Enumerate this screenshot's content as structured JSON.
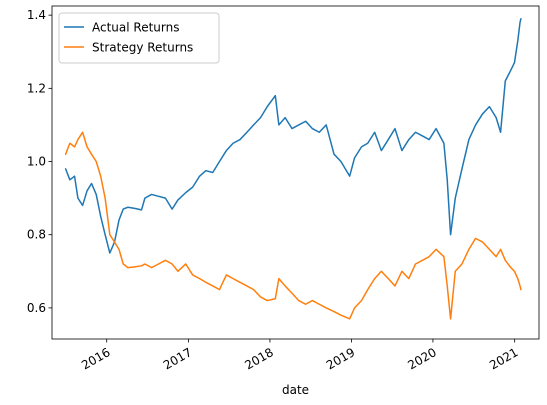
{
  "chart_data": {
    "type": "line",
    "xlabel": "date",
    "ylabel": "",
    "xlim": [
      "2015-05-01",
      "2021-04-20"
    ],
    "ylim": [
      0.515,
      1.425
    ],
    "x_ticks": [
      {
        "date": "2016-01-01",
        "label": "2016"
      },
      {
        "date": "2017-01-01",
        "label": "2017"
      },
      {
        "date": "2018-01-01",
        "label": "2018"
      },
      {
        "date": "2019-01-01",
        "label": "2019"
      },
      {
        "date": "2020-01-01",
        "label": "2020"
      },
      {
        "date": "2021-01-01",
        "label": "2021"
      }
    ],
    "y_ticks": [
      {
        "value": 0.6,
        "label": "0.6"
      },
      {
        "value": 0.8,
        "label": "0.8"
      },
      {
        "value": 1.0,
        "label": "1.0"
      },
      {
        "value": 1.2,
        "label": "1.2"
      },
      {
        "value": 1.4,
        "label": "1.4"
      }
    ],
    "grid": false,
    "legend_position": "top-left",
    "series": [
      {
        "name": "Actual Returns",
        "color": "#1f77b4",
        "points": [
          [
            "2015-07-01",
            0.98
          ],
          [
            "2015-07-20",
            0.95
          ],
          [
            "2015-08-10",
            0.96
          ],
          [
            "2015-08-25",
            0.9
          ],
          [
            "2015-09-15",
            0.88
          ],
          [
            "2015-10-05",
            0.92
          ],
          [
            "2015-10-25",
            0.94
          ],
          [
            "2015-11-15",
            0.91
          ],
          [
            "2015-12-05",
            0.85
          ],
          [
            "2015-12-25",
            0.8
          ],
          [
            "2016-01-15",
            0.75
          ],
          [
            "2016-02-05",
            0.78
          ],
          [
            "2016-02-25",
            0.84
          ],
          [
            "2016-03-15",
            0.87
          ],
          [
            "2016-04-05",
            0.875
          ],
          [
            "2016-05-05",
            0.872
          ],
          [
            "2016-06-05",
            0.868
          ],
          [
            "2016-06-20",
            0.9
          ],
          [
            "2016-07-20",
            0.91
          ],
          [
            "2016-08-20",
            0.905
          ],
          [
            "2016-09-20",
            0.9
          ],
          [
            "2016-10-20",
            0.87
          ],
          [
            "2016-11-15",
            0.895
          ],
          [
            "2016-12-20",
            0.915
          ],
          [
            "2017-01-20",
            0.93
          ],
          [
            "2017-02-20",
            0.96
          ],
          [
            "2017-03-20",
            0.975
          ],
          [
            "2017-04-20",
            0.97
          ],
          [
            "2017-05-20",
            1.0
          ],
          [
            "2017-06-20",
            1.03
          ],
          [
            "2017-07-20",
            1.05
          ],
          [
            "2017-08-20",
            1.06
          ],
          [
            "2017-09-20",
            1.08
          ],
          [
            "2017-10-20",
            1.1
          ],
          [
            "2017-11-20",
            1.12
          ],
          [
            "2017-12-20",
            1.15
          ],
          [
            "2018-01-25",
            1.18
          ],
          [
            "2018-02-10",
            1.1
          ],
          [
            "2018-03-10",
            1.12
          ],
          [
            "2018-04-10",
            1.09
          ],
          [
            "2018-05-10",
            1.1
          ],
          [
            "2018-06-10",
            1.11
          ],
          [
            "2018-07-10",
            1.09
          ],
          [
            "2018-08-10",
            1.08
          ],
          [
            "2018-09-10",
            1.1
          ],
          [
            "2018-10-15",
            1.02
          ],
          [
            "2018-11-15",
            1.0
          ],
          [
            "2018-12-24",
            0.96
          ],
          [
            "2019-01-15",
            1.01
          ],
          [
            "2019-02-15",
            1.04
          ],
          [
            "2019-03-15",
            1.05
          ],
          [
            "2019-04-15",
            1.08
          ],
          [
            "2019-05-15",
            1.03
          ],
          [
            "2019-06-15",
            1.06
          ],
          [
            "2019-07-15",
            1.09
          ],
          [
            "2019-08-15",
            1.03
          ],
          [
            "2019-09-15",
            1.06
          ],
          [
            "2019-10-15",
            1.08
          ],
          [
            "2019-11-15",
            1.07
          ],
          [
            "2019-12-15",
            1.06
          ],
          [
            "2020-01-15",
            1.09
          ],
          [
            "2020-02-19",
            1.05
          ],
          [
            "2020-03-05",
            0.95
          ],
          [
            "2020-03-20",
            0.8
          ],
          [
            "2020-04-10",
            0.9
          ],
          [
            "2020-05-10",
            0.98
          ],
          [
            "2020-06-10",
            1.06
          ],
          [
            "2020-07-10",
            1.1
          ],
          [
            "2020-08-10",
            1.13
          ],
          [
            "2020-09-10",
            1.15
          ],
          [
            "2020-10-10",
            1.12
          ],
          [
            "2020-10-30",
            1.08
          ],
          [
            "2020-11-20",
            1.22
          ],
          [
            "2020-12-15",
            1.25
          ],
          [
            "2020-12-31",
            1.27
          ],
          [
            "2021-01-15",
            1.33
          ],
          [
            "2021-01-25",
            1.38
          ],
          [
            "2021-01-29",
            1.39
          ]
        ]
      },
      {
        "name": "Strategy Returns",
        "color": "#ff7f0e",
        "points": [
          [
            "2015-07-01",
            1.02
          ],
          [
            "2015-07-20",
            1.05
          ],
          [
            "2015-08-10",
            1.04
          ],
          [
            "2015-08-25",
            1.06
          ],
          [
            "2015-09-15",
            1.08
          ],
          [
            "2015-10-05",
            1.04
          ],
          [
            "2015-10-25",
            1.02
          ],
          [
            "2015-11-15",
            1.0
          ],
          [
            "2015-12-05",
            0.96
          ],
          [
            "2015-12-25",
            0.9
          ],
          [
            "2016-01-15",
            0.8
          ],
          [
            "2016-02-05",
            0.78
          ],
          [
            "2016-02-25",
            0.76
          ],
          [
            "2016-03-15",
            0.72
          ],
          [
            "2016-04-05",
            0.71
          ],
          [
            "2016-05-05",
            0.712
          ],
          [
            "2016-06-05",
            0.715
          ],
          [
            "2016-06-20",
            0.72
          ],
          [
            "2016-07-20",
            0.71
          ],
          [
            "2016-08-20",
            0.72
          ],
          [
            "2016-09-20",
            0.73
          ],
          [
            "2016-10-20",
            0.72
          ],
          [
            "2016-11-15",
            0.7
          ],
          [
            "2016-12-20",
            0.72
          ],
          [
            "2017-01-20",
            0.69
          ],
          [
            "2017-02-20",
            0.68
          ],
          [
            "2017-03-20",
            0.67
          ],
          [
            "2017-04-20",
            0.66
          ],
          [
            "2017-05-20",
            0.65
          ],
          [
            "2017-06-20",
            0.69
          ],
          [
            "2017-07-20",
            0.68
          ],
          [
            "2017-08-20",
            0.67
          ],
          [
            "2017-09-20",
            0.66
          ],
          [
            "2017-10-20",
            0.65
          ],
          [
            "2017-11-20",
            0.63
          ],
          [
            "2017-12-20",
            0.62
          ],
          [
            "2018-01-25",
            0.625
          ],
          [
            "2018-02-10",
            0.68
          ],
          [
            "2018-03-10",
            0.66
          ],
          [
            "2018-04-10",
            0.64
          ],
          [
            "2018-05-10",
            0.62
          ],
          [
            "2018-06-10",
            0.61
          ],
          [
            "2018-07-10",
            0.62
          ],
          [
            "2018-08-10",
            0.61
          ],
          [
            "2018-09-10",
            0.6
          ],
          [
            "2018-10-15",
            0.59
          ],
          [
            "2018-11-15",
            0.58
          ],
          [
            "2018-12-24",
            0.57
          ],
          [
            "2019-01-15",
            0.6
          ],
          [
            "2019-02-15",
            0.62
          ],
          [
            "2019-03-15",
            0.65
          ],
          [
            "2019-04-15",
            0.68
          ],
          [
            "2019-05-15",
            0.7
          ],
          [
            "2019-06-15",
            0.68
          ],
          [
            "2019-07-15",
            0.66
          ],
          [
            "2019-08-15",
            0.7
          ],
          [
            "2019-09-15",
            0.68
          ],
          [
            "2019-10-15",
            0.72
          ],
          [
            "2019-11-15",
            0.73
          ],
          [
            "2019-12-15",
            0.74
          ],
          [
            "2020-01-15",
            0.76
          ],
          [
            "2020-02-19",
            0.74
          ],
          [
            "2020-03-05",
            0.66
          ],
          [
            "2020-03-20",
            0.57
          ],
          [
            "2020-04-10",
            0.7
          ],
          [
            "2020-05-10",
            0.72
          ],
          [
            "2020-06-10",
            0.76
          ],
          [
            "2020-07-10",
            0.79
          ],
          [
            "2020-08-10",
            0.78
          ],
          [
            "2020-09-10",
            0.76
          ],
          [
            "2020-10-10",
            0.74
          ],
          [
            "2020-10-30",
            0.76
          ],
          [
            "2020-11-20",
            0.73
          ],
          [
            "2020-12-15",
            0.71
          ],
          [
            "2020-12-31",
            0.7
          ],
          [
            "2021-01-15",
            0.68
          ],
          [
            "2021-01-25",
            0.66
          ],
          [
            "2021-01-29",
            0.65
          ]
        ]
      }
    ]
  }
}
